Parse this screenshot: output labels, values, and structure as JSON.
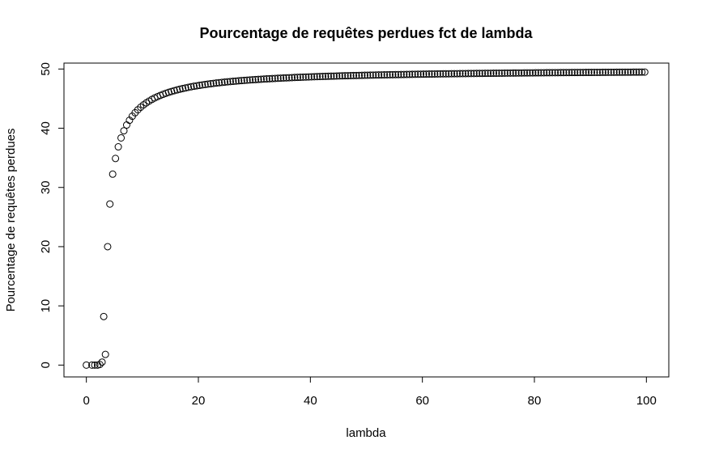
{
  "chart_data": {
    "type": "scatter",
    "title": "Pourcentage de requêtes perdues fct de lambda",
    "xlabel": "lambda",
    "ylabel": "Pourcentage de requêtes perdues",
    "xlim": [
      -4,
      104
    ],
    "ylim": [
      -2,
      51
    ],
    "xticks": [
      0,
      20,
      40,
      60,
      80,
      100
    ],
    "yticks": [
      0,
      10,
      20,
      30,
      40,
      50
    ],
    "grid": false,
    "legend": "none",
    "marker": "open-circle",
    "points": [
      [
        0,
        0
      ],
      [
        1.0,
        0
      ],
      [
        1.5,
        0
      ],
      [
        2.0,
        0
      ],
      [
        2.4,
        0.1
      ],
      [
        2.8,
        0.5
      ],
      [
        3.1,
        8.2
      ],
      [
        3.4,
        1.8
      ],
      [
        3.8,
        20.0
      ],
      [
        4.2,
        27.2
      ]
    ],
    "curve": {
      "start": 4.7,
      "end": 100,
      "step": 0.5,
      "asymptote": 50,
      "scale": 50.6,
      "offset": 1.85
    }
  }
}
